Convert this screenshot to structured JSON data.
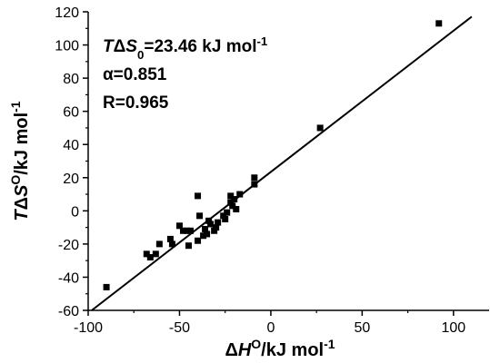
{
  "chart_data": {
    "type": "scatter",
    "x_axis": {
      "ylim_unused": null,
      "range": [
        -100,
        120
      ],
      "ticks": [
        -100,
        -50,
        0,
        50,
        100
      ]
    },
    "y_axis": {
      "range": [
        -60,
        120
      ],
      "ticks": [
        -60,
        -40,
        -20,
        0,
        20,
        40,
        60,
        80,
        100,
        120
      ]
    },
    "xlabel": {
      "pre": "Δ",
      "italic": "H",
      "sup1": "O",
      "post": "/kJ mol",
      "sup2": "-1"
    },
    "ylabel": {
      "italic1": "T",
      "mid": "Δ",
      "italic2": "S",
      "sup1": "O",
      "post": "/kJ mol",
      "sup2": "-1"
    },
    "annotations": {
      "line1": {
        "italic1": "T",
        "mid": "Δ",
        "italic2": "S",
        "sub": "0",
        "post": "=23.46 kJ mol",
        "sup": "-1"
      },
      "line2": "α=0.851",
      "line3": "R=0.965"
    },
    "fit_line": {
      "slope": 0.851,
      "intercept": 23.46,
      "x_start": -98,
      "x_end": 110
    },
    "points": [
      [
        -90,
        -46
      ],
      [
        -68,
        -26
      ],
      [
        -66,
        -28
      ],
      [
        -63,
        -26
      ],
      [
        -61,
        -20
      ],
      [
        -55,
        -17
      ],
      [
        -54,
        -20
      ],
      [
        -50,
        -9
      ],
      [
        -48,
        -12
      ],
      [
        -46,
        -12
      ],
      [
        -45,
        -21
      ],
      [
        -44,
        -12
      ],
      [
        -40,
        9
      ],
      [
        -40,
        -18
      ],
      [
        -39,
        -3
      ],
      [
        -37,
        -15
      ],
      [
        -36,
        -11
      ],
      [
        -35,
        -14
      ],
      [
        -34,
        -6
      ],
      [
        -33,
        -8
      ],
      [
        -31,
        -12
      ],
      [
        -30,
        -10
      ],
      [
        -29,
        -7
      ],
      [
        -26,
        -3
      ],
      [
        -25,
        -5
      ],
      [
        -24,
        -1
      ],
      [
        -22,
        9
      ],
      [
        -22,
        5
      ],
      [
        -21,
        3
      ],
      [
        -20,
        7
      ],
      [
        -19,
        1
      ],
      [
        -17,
        10
      ],
      [
        -9,
        20
      ],
      [
        -9,
        16
      ],
      [
        27,
        50
      ],
      [
        92,
        113
      ]
    ],
    "grid": false,
    "legend": "none"
  },
  "colors": {
    "axis": "#000000",
    "points": "#000000",
    "line": "#000000",
    "background": "#ffffff"
  }
}
